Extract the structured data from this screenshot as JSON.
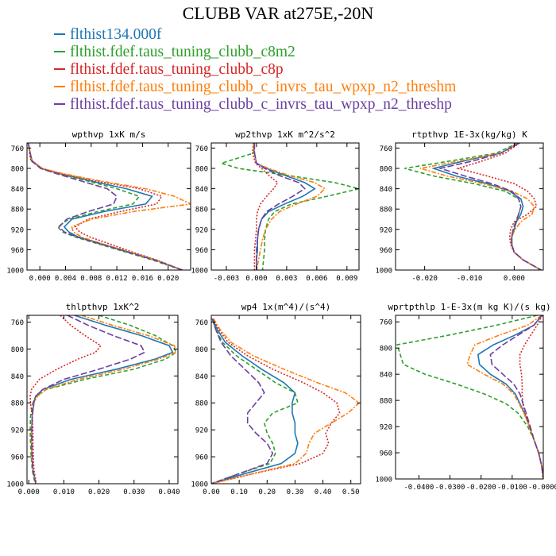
{
  "title": "CLUBB VAR at275E,-20N",
  "legend": [
    {
      "label": "flthist134.000f",
      "color": "#1f77b4",
      "dash": ""
    },
    {
      "label": "flthist.fdef.taus_tuning_clubb_c8m2",
      "color": "#2ca02c",
      "dash": "5,3"
    },
    {
      "label": "flthist.fdef.taus_tuning_clubb_c8p",
      "color": "#d62728",
      "dash": "2,2"
    },
    {
      "label": "flthist.fdef.taus_tuning_clubb_c_invrs_tau_wpxp_n2_threshm",
      "color": "#ff7f0e",
      "dash": "6,2,2,2"
    },
    {
      "label": "flthist.fdef.taus_tuning_clubb_c_invrs_tau_wpxp_n2_threshp",
      "color": "#6b3fa0",
      "dash": "8,3"
    }
  ],
  "chart_data": [
    {
      "type": "line",
      "title": "wpthvp  1xK m/s",
      "xlim": [
        -0.002,
        0.0235
      ],
      "ylim": [
        1000,
        750
      ],
      "xticks": [
        0.0,
        0.004,
        0.008,
        0.012,
        0.016,
        0.02
      ],
      "xtick_labels": [
        "0.000",
        "0.004",
        "0.008",
        "0.012",
        "0.016",
        "0.020"
      ],
      "yticks": [
        760,
        800,
        840,
        880,
        920,
        960,
        1000
      ],
      "y": [
        750,
        770,
        785,
        800,
        810,
        825,
        840,
        855,
        870,
        885,
        900,
        915,
        925,
        935,
        950,
        965,
        980,
        1000
      ],
      "series": [
        {
          "values": [
            -0.0018,
            -0.0015,
            -0.0012,
            0.0003,
            0.003,
            0.008,
            0.0135,
            0.0175,
            0.0165,
            0.01,
            0.005,
            0.0038,
            0.0045,
            0.006,
            0.01,
            0.014,
            0.018,
            0.0222
          ]
        },
        {
          "values": [
            -0.0018,
            -0.0015,
            -0.0013,
            0.0002,
            0.0028,
            0.0075,
            0.012,
            0.0155,
            0.0145,
            0.009,
            0.0045,
            0.0028,
            0.0035,
            0.0055,
            0.0095,
            0.0135,
            0.0175,
            0.0222
          ]
        },
        {
          "values": [
            -0.0018,
            -0.0016,
            -0.0014,
            0.0002,
            0.0032,
            0.0088,
            0.0155,
            0.019,
            0.0182,
            0.0125,
            0.0075,
            0.0055,
            0.0062,
            0.0078,
            0.0112,
            0.0145,
            0.0182,
            0.0222
          ]
        },
        {
          "values": [
            -0.0018,
            -0.0015,
            -0.0012,
            0.0004,
            0.0035,
            0.0095,
            0.0165,
            0.021,
            0.0235,
            0.0145,
            0.008,
            0.005,
            0.0052,
            0.0065,
            0.0102,
            0.0142,
            0.018,
            0.0222
          ]
        },
        {
          "values": [
            -0.0018,
            -0.0015,
            -0.0013,
            0.0001,
            0.0025,
            0.0065,
            0.0105,
            0.012,
            0.0115,
            0.0075,
            0.0042,
            0.003,
            0.0038,
            0.0058,
            0.0098,
            0.0138,
            0.0178,
            0.0222
          ]
        }
      ]
    },
    {
      "type": "line",
      "title": "wp2thvp  1xK m^2/s^2",
      "xlim": [
        -0.0045,
        0.0102
      ],
      "ylim": [
        1000,
        750
      ],
      "xticks": [
        -0.003,
        0.0,
        0.003,
        0.006,
        0.009
      ],
      "xtick_labels": [
        "-0.003",
        "0.000",
        "0.003",
        "0.006",
        "0.009"
      ],
      "yticks": [
        760,
        800,
        840,
        880,
        920,
        960,
        1000
      ],
      "y": [
        750,
        770,
        790,
        800,
        815,
        828,
        840,
        855,
        870,
        885,
        900,
        920,
        940,
        960,
        980,
        1000
      ],
      "series": [
        {
          "values": [
            -0.0003,
            -0.0002,
            0.0,
            0.001,
            0.003,
            0.0048,
            0.0058,
            0.0046,
            0.0028,
            0.0012,
            0.0005,
            0.0002,
            0.0001,
            0.0001,
            0.0,
            0.0
          ]
        },
        {
          "values": [
            -0.0002,
            -0.0003,
            -0.0035,
            -0.0018,
            0.0035,
            0.0078,
            0.0102,
            0.007,
            0.0035,
            0.0018,
            0.0012,
            0.0009,
            0.0008,
            0.0008,
            0.0007,
            0.0006
          ]
        },
        {
          "values": [
            -0.0003,
            -0.0004,
            -0.0001,
            0.0005,
            0.0013,
            0.0021,
            0.0017,
            0.001,
            0.0004,
            0.0001,
            0.0,
            0.0,
            -0.0001,
            -0.0002,
            -0.0002,
            -0.0002
          ]
        },
        {
          "values": [
            -0.0003,
            -0.0002,
            0.0,
            0.0012,
            0.0034,
            0.0058,
            0.0068,
            0.006,
            0.004,
            0.0023,
            0.0015,
            0.0009,
            0.0006,
            0.0004,
            0.0002,
            0.0
          ]
        },
        {
          "values": [
            -0.0002,
            -0.0002,
            0.0,
            0.0008,
            0.0024,
            0.0042,
            0.0048,
            0.0036,
            0.0022,
            0.001,
            0.0005,
            0.0002,
            0.0001,
            0.0,
            0.0,
            0.0
          ]
        }
      ]
    },
    {
      "type": "line",
      "title": "rtpthvp  1E-3x(kg/kg) K",
      "xlim": [
        -0.0265,
        0.0065
      ],
      "ylim": [
        1000,
        750
      ],
      "xticks": [
        -0.02,
        -0.01,
        0.0
      ],
      "xtick_labels": [
        "-0.020",
        "-0.010",
        "0.000"
      ],
      "yticks": [
        760,
        800,
        840,
        880,
        920,
        960,
        1000
      ],
      "y": [
        750,
        770,
        785,
        800,
        815,
        830,
        845,
        860,
        875,
        890,
        905,
        920,
        935,
        950,
        965,
        980,
        1000
      ],
      "series": [
        {
          "values": [
            0.001,
            -0.003,
            -0.011,
            -0.018,
            -0.013,
            -0.006,
            -0.001,
            0.0015,
            0.002,
            0.0015,
            0.0005,
            0.0,
            -0.0005,
            -0.0005,
            0.0,
            0.002,
            0.006
          ]
        },
        {
          "values": [
            0.0008,
            -0.004,
            -0.014,
            -0.0245,
            -0.018,
            -0.009,
            -0.002,
            0.001,
            0.0015,
            0.001,
            0.0005,
            -0.0002,
            -0.0006,
            -0.0005,
            0.0,
            0.002,
            0.006
          ]
        },
        {
          "values": [
            0.0012,
            -0.002,
            -0.007,
            -0.0125,
            -0.006,
            0.0,
            0.003,
            0.0045,
            0.005,
            0.003,
            0.0,
            -0.0008,
            -0.001,
            -0.0008,
            0.0,
            0.002,
            0.006
          ]
        },
        {
          "values": [
            0.001,
            -0.003,
            -0.012,
            -0.021,
            -0.015,
            -0.007,
            -0.0005,
            0.003,
            0.0045,
            0.004,
            0.0015,
            0.0002,
            -0.0006,
            -0.0005,
            0.0,
            0.002,
            0.006
          ]
        },
        {
          "values": [
            0.0012,
            -0.003,
            -0.009,
            -0.0165,
            -0.011,
            -0.005,
            -0.0005,
            0.001,
            0.0015,
            0.001,
            0.0003,
            -0.0002,
            -0.0006,
            -0.0006,
            0.0,
            0.002,
            0.006
          ]
        }
      ]
    },
    {
      "type": "line",
      "title": "thlpthvp  1xK^2",
      "xlim": [
        -0.0005,
        0.0425
      ],
      "ylim": [
        1000,
        750
      ],
      "xticks": [
        0.0,
        0.01,
        0.02,
        0.03,
        0.04
      ],
      "xtick_labels": [
        "0.000",
        "0.010",
        "0.020",
        "0.030",
        "0.040"
      ],
      "yticks": [
        760,
        800,
        840,
        880,
        920,
        960,
        1000
      ],
      "y": [
        750,
        765,
        780,
        795,
        805,
        815,
        830,
        845,
        860,
        870,
        880,
        900,
        920,
        940,
        960,
        980,
        1000
      ],
      "series": [
        {
          "values": [
            0.013,
            0.022,
            0.032,
            0.04,
            0.041,
            0.036,
            0.025,
            0.012,
            0.004,
            0.002,
            0.0015,
            0.001,
            0.0008,
            0.0008,
            0.0009,
            0.0012,
            0.002
          ]
        },
        {
          "values": [
            0.02,
            0.029,
            0.036,
            0.041,
            0.042,
            0.039,
            0.03,
            0.016,
            0.005,
            0.002,
            0.0012,
            0.0005,
            0.0004,
            0.0005,
            0.0007,
            0.001,
            0.0018
          ]
        },
        {
          "values": [
            0.009,
            0.012,
            0.016,
            0.0205,
            0.019,
            0.014,
            0.008,
            0.003,
            0.0008,
            0.0004,
            0.0005,
            0.001,
            0.0012,
            0.0012,
            0.0013,
            0.0015,
            0.0022
          ]
        },
        {
          "values": [
            0.015,
            0.024,
            0.034,
            0.0415,
            0.042,
            0.037,
            0.027,
            0.014,
            0.005,
            0.0025,
            0.0015,
            0.001,
            0.0008,
            0.0008,
            0.0009,
            0.0012,
            0.002
          ]
        },
        {
          "values": [
            0.011,
            0.017,
            0.024,
            0.032,
            0.033,
            0.029,
            0.02,
            0.01,
            0.004,
            0.002,
            0.0013,
            0.001,
            0.0009,
            0.0009,
            0.001,
            0.0012,
            0.002
          ]
        }
      ]
    },
    {
      "type": "line",
      "title": "wp4  1x(m^4)/(s^4)",
      "xlim": [
        0.0,
        0.535
      ],
      "ylim": [
        1000,
        750
      ],
      "xticks": [
        0.0,
        0.1,
        0.2,
        0.3,
        0.4,
        0.5
      ],
      "xtick_labels": [
        "0.00",
        "0.10",
        "0.20",
        "0.30",
        "0.40",
        "0.50"
      ],
      "yticks": [
        760,
        800,
        840,
        880,
        920,
        960,
        1000
      ],
      "y": [
        755,
        770,
        790,
        810,
        830,
        850,
        865,
        880,
        895,
        910,
        925,
        940,
        955,
        970,
        985,
        1000
      ],
      "series": [
        {
          "values": [
            0.005,
            0.02,
            0.05,
            0.11,
            0.18,
            0.26,
            0.3,
            0.29,
            0.29,
            0.3,
            0.3,
            0.31,
            0.3,
            0.25,
            0.12,
            0.0
          ]
        },
        {
          "values": [
            0.003,
            0.015,
            0.04,
            0.09,
            0.16,
            0.23,
            0.3,
            0.31,
            0.22,
            0.19,
            0.2,
            0.22,
            0.23,
            0.21,
            0.1,
            0.0
          ]
        },
        {
          "values": [
            0.006,
            0.025,
            0.06,
            0.13,
            0.22,
            0.33,
            0.4,
            0.45,
            0.46,
            0.43,
            0.41,
            0.42,
            0.4,
            0.32,
            0.15,
            0.0
          ]
        },
        {
          "values": [
            0.008,
            0.03,
            0.07,
            0.15,
            0.26,
            0.38,
            0.48,
            0.53,
            0.49,
            0.43,
            0.37,
            0.35,
            0.34,
            0.3,
            0.15,
            0.0
          ]
        },
        {
          "values": [
            0.004,
            0.015,
            0.035,
            0.07,
            0.12,
            0.17,
            0.19,
            0.16,
            0.13,
            0.13,
            0.16,
            0.2,
            0.22,
            0.2,
            0.1,
            0.0
          ]
        }
      ]
    },
    {
      "type": "line",
      "title": "wprtpthlp  1-E-3x(m kg K)/(s kg)",
      "xlim": [
        -0.0475,
        0.0
      ],
      "ylim": [
        1000,
        750
      ],
      "xticks": [
        -0.04,
        -0.03,
        -0.02,
        -0.01,
        0.0
      ],
      "xtick_labels": [
        "-0.0400",
        "-0.0300",
        "-0.0200",
        "-0.0100",
        "-0.0000"
      ],
      "yticks": [
        760,
        800,
        840,
        880,
        920,
        960,
        1000
      ],
      "y": [
        750,
        765,
        780,
        795,
        810,
        825,
        840,
        855,
        870,
        885,
        900,
        920,
        940,
        960,
        980,
        1000
      ],
      "series": [
        {
          "values": [
            -0.0005,
            -0.003,
            -0.009,
            -0.016,
            -0.021,
            -0.0205,
            -0.017,
            -0.012,
            -0.009,
            -0.0075,
            -0.006,
            -0.0045,
            -0.003,
            -0.0015,
            -0.0005,
            0.0
          ]
        },
        {
          "values": [
            -0.002,
            -0.015,
            -0.03,
            -0.047,
            -0.046,
            -0.045,
            -0.038,
            -0.028,
            -0.019,
            -0.012,
            -0.008,
            -0.005,
            -0.003,
            -0.0015,
            -0.0005,
            0.0
          ]
        },
        {
          "values": [
            -0.0003,
            -0.002,
            -0.004,
            -0.006,
            -0.0075,
            -0.0075,
            -0.007,
            -0.0068,
            -0.0068,
            -0.0066,
            -0.0058,
            -0.0045,
            -0.003,
            -0.0015,
            -0.0005,
            0.0
          ]
        },
        {
          "values": [
            -0.0005,
            -0.005,
            -0.014,
            -0.022,
            -0.0235,
            -0.0245,
            -0.019,
            -0.013,
            -0.0095,
            -0.0078,
            -0.0062,
            -0.0045,
            -0.003,
            -0.0015,
            -0.0005,
            0.0
          ]
        },
        {
          "values": [
            -0.0004,
            -0.003,
            -0.008,
            -0.013,
            -0.017,
            -0.0165,
            -0.013,
            -0.0095,
            -0.0075,
            -0.0065,
            -0.0055,
            -0.0042,
            -0.003,
            -0.0015,
            -0.0005,
            0.0
          ]
        }
      ]
    }
  ]
}
